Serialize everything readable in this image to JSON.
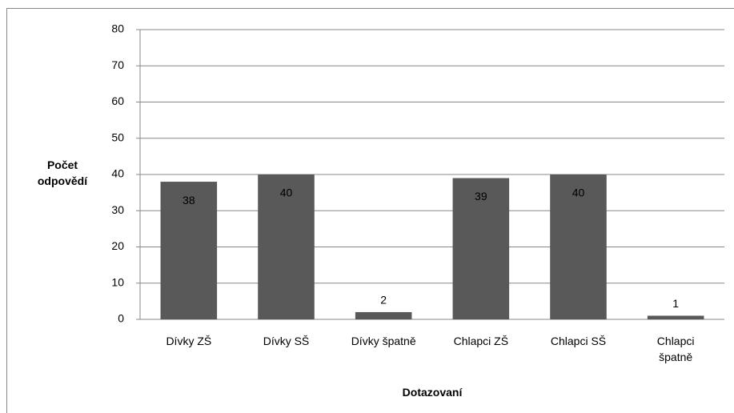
{
  "chart_data": {
    "type": "bar",
    "categories": [
      "Dívky ZŠ",
      "Dívky SŠ",
      "Dívky špatně",
      "Chlapci ZŠ",
      "Chlapci SŠ",
      "Chlapci špatně"
    ],
    "values": [
      38,
      40,
      2,
      39,
      40,
      1
    ],
    "color": "#595959",
    "ylim": [
      0,
      80
    ],
    "yticks": [
      0,
      10,
      20,
      30,
      40,
      50,
      60,
      70,
      80
    ],
    "grid": true,
    "y_label": "Počet odpovědí",
    "x_label": "Dotazovaní"
  }
}
